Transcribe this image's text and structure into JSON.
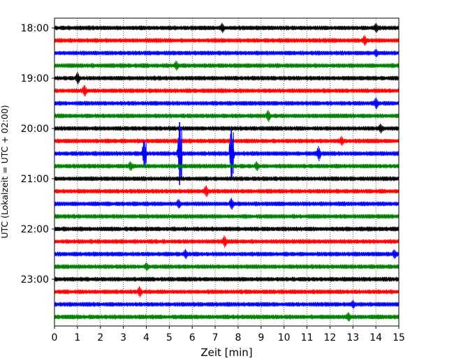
{
  "chart_data": {
    "type": "line",
    "title": "",
    "xlabel": "Zeit  [min]",
    "ylabel": "UTC (Lokalzeit = UTC + 02:00)",
    "xlim": [
      0,
      15
    ],
    "x_ticks": [
      "0",
      "1",
      "2",
      "3",
      "4",
      "5",
      "6",
      "7",
      "8",
      "9",
      "10",
      "11",
      "12",
      "13",
      "14",
      "15"
    ],
    "y_ticks": [
      {
        "row": 0,
        "label": "18:00"
      },
      {
        "row": 4,
        "label": "19:00"
      },
      {
        "row": 8,
        "label": "20:00"
      },
      {
        "row": 12,
        "label": "21:00"
      },
      {
        "row": 16,
        "label": "22:00"
      },
      {
        "row": 20,
        "label": "23:00"
      }
    ],
    "grid": {
      "x": true,
      "style": "dotted"
    },
    "trace_colors": [
      "#000000",
      "#ff0000",
      "#0000ff",
      "#008000"
    ],
    "traces": [
      {
        "start": "18:00",
        "events": [
          {
            "t": 7.3,
            "amp": 0.3
          },
          {
            "t": 14.0,
            "amp": 0.3
          }
        ]
      },
      {
        "start": "18:15",
        "events": [
          {
            "t": 13.5,
            "amp": 0.35
          }
        ]
      },
      {
        "start": "18:30",
        "events": [
          {
            "t": 14.0,
            "amp": 0.25
          }
        ]
      },
      {
        "start": "18:45",
        "events": [
          {
            "t": 5.3,
            "amp": 0.3
          }
        ]
      },
      {
        "start": "19:00",
        "events": [
          {
            "t": 1.0,
            "amp": 0.4
          }
        ]
      },
      {
        "start": "19:15",
        "events": [
          {
            "t": 1.3,
            "amp": 0.4
          }
        ]
      },
      {
        "start": "19:30",
        "events": [
          {
            "t": 14.0,
            "amp": 0.4
          }
        ]
      },
      {
        "start": "19:45",
        "events": [
          {
            "t": 9.3,
            "amp": 0.4
          }
        ]
      },
      {
        "start": "20:00",
        "events": [
          {
            "t": 14.2,
            "amp": 0.3
          }
        ]
      },
      {
        "start": "20:15",
        "events": [
          {
            "t": 12.5,
            "amp": 0.3
          }
        ]
      },
      {
        "start": "20:30",
        "events": [
          {
            "t": 3.9,
            "amp": 1.0
          },
          {
            "t": 5.45,
            "amp": 2.5
          },
          {
            "t": 7.7,
            "amp": 2.0
          },
          {
            "t": 11.5,
            "amp": 0.5
          }
        ]
      },
      {
        "start": "20:45",
        "events": [
          {
            "t": 3.3,
            "amp": 0.3
          },
          {
            "t": 8.8,
            "amp": 0.3
          }
        ]
      },
      {
        "start": "21:00",
        "events": []
      },
      {
        "start": "21:15",
        "events": [
          {
            "t": 6.6,
            "amp": 0.4
          }
        ]
      },
      {
        "start": "21:30",
        "events": [
          {
            "t": 5.4,
            "amp": 0.3
          },
          {
            "t": 7.7,
            "amp": 0.4
          }
        ]
      },
      {
        "start": "21:45",
        "events": []
      },
      {
        "start": "22:00",
        "events": []
      },
      {
        "start": "22:15",
        "events": [
          {
            "t": 7.4,
            "amp": 0.4
          }
        ]
      },
      {
        "start": "22:30",
        "events": [
          {
            "t": 5.7,
            "amp": 0.3
          },
          {
            "t": 14.8,
            "amp": 0.3
          }
        ]
      },
      {
        "start": "22:45",
        "events": [
          {
            "t": 4.0,
            "amp": 0.25
          }
        ]
      },
      {
        "start": "23:00",
        "events": []
      },
      {
        "start": "23:15",
        "events": [
          {
            "t": 3.7,
            "amp": 0.35
          }
        ]
      },
      {
        "start": "23:30",
        "events": [
          {
            "t": 13.0,
            "amp": 0.25
          }
        ]
      },
      {
        "start": "23:45",
        "events": [
          {
            "t": 12.8,
            "amp": 0.3
          }
        ]
      }
    ]
  }
}
